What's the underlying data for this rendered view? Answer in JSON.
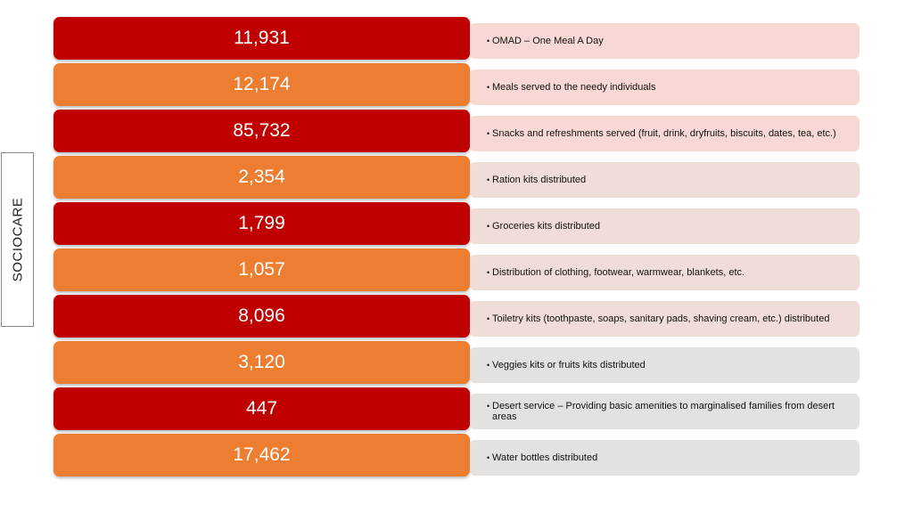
{
  "side_label": "SOCIOCARE",
  "colors": {
    "dark_red": "#c00000",
    "orange": "#ed7d31",
    "pink_light": "#f8d8d4",
    "pink_mid": "#f0dcd8",
    "gray_light": "#e4e1e1"
  },
  "rows": [
    {
      "value": "11,931",
      "description": "OMAD – One Meal A Day"
    },
    {
      "value": "12,174",
      "description": "Meals served to the needy individuals"
    },
    {
      "value": "85,732",
      "description": "Snacks and refreshments served (fruit, drink, dryfruits, biscuits, dates, tea, etc.)"
    },
    {
      "value": "2,354",
      "description": "Ration kits distributed"
    },
    {
      "value": "1,799",
      "description": "Groceries kits distributed"
    },
    {
      "value": "1,057",
      "description": "Distribution of clothing, footwear, warmwear, blankets, etc."
    },
    {
      "value": "8,096",
      "description": "Toiletry kits (toothpaste, soaps, sanitary pads, shaving cream, etc.) distributed"
    },
    {
      "value": "3,120",
      "description": "Veggies kits or fruits kits distributed"
    },
    {
      "value": "447",
      "description": "Desert service – Providing basic amenities to marginalised families from desert areas"
    },
    {
      "value": "17,462",
      "description": "Water bottles distributed"
    }
  ]
}
